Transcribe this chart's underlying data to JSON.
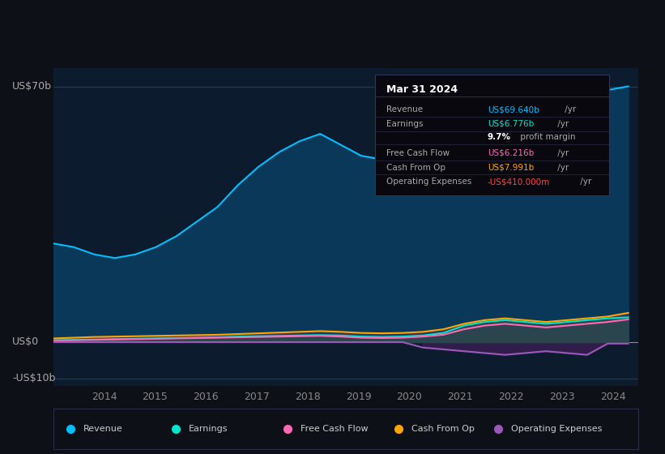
{
  "bg_color": "#0d1117",
  "plot_bg_color": "#0d1b2e",
  "x_labels": [
    "2014",
    "2015",
    "2016",
    "2017",
    "2018",
    "2019",
    "2020",
    "2021",
    "2022",
    "2023",
    "2024"
  ],
  "legend": [
    {
      "label": "Revenue",
      "color": "#00bfff"
    },
    {
      "label": "Earnings",
      "color": "#00e5cc"
    },
    {
      "label": "Free Cash Flow",
      "color": "#ff69b4"
    },
    {
      "label": "Cash From Op",
      "color": "#ffa500"
    },
    {
      "label": "Operating Expenses",
      "color": "#9b59b6"
    }
  ],
  "info_box_title": "Mar 31 2024",
  "info_rows": [
    {
      "label": "Revenue",
      "value": "US$69.640b",
      "suffix": " /yr",
      "value_color": "#00bfff",
      "bold": false
    },
    {
      "label": "Earnings",
      "value": "US$6.776b",
      "suffix": " /yr",
      "value_color": "#00e5cc",
      "bold": false
    },
    {
      "label": "",
      "value": "9.7%",
      "suffix": " profit margin",
      "value_color": "#ffffff",
      "bold": true
    },
    {
      "label": "Free Cash Flow",
      "value": "US$6.216b",
      "suffix": " /yr",
      "value_color": "#ff69b4",
      "bold": false
    },
    {
      "label": "Cash From Op",
      "value": "US$7.991b",
      "suffix": " /yr",
      "value_color": "#ffa500",
      "bold": false
    },
    {
      "label": "Operating Expenses",
      "value": "-US$410.000m",
      "suffix": " /yr",
      "value_color": "#ff4444",
      "bold": false
    }
  ],
  "revenue": [
    27,
    26,
    24,
    23,
    24,
    26,
    29,
    33,
    37,
    43,
    48,
    52,
    55,
    57,
    54,
    51,
    50,
    52,
    56,
    60,
    63,
    67,
    65,
    62,
    60,
    62,
    66,
    69,
    70
  ],
  "earnings": [
    0.5,
    0.6,
    0.7,
    0.8,
    0.9,
    1.0,
    1.1,
    1.2,
    1.3,
    1.5,
    1.6,
    1.7,
    1.8,
    1.9,
    1.8,
    1.5,
    1.4,
    1.5,
    1.8,
    2.5,
    4.5,
    5.5,
    6.0,
    5.5,
    5.0,
    5.5,
    6.0,
    6.5,
    6.776
  ],
  "free_cash_flow": [
    0.4,
    0.5,
    0.6,
    0.7,
    0.8,
    0.9,
    1.0,
    1.1,
    1.2,
    1.3,
    1.4,
    1.5,
    1.6,
    1.7,
    1.5,
    1.2,
    1.1,
    1.2,
    1.5,
    2.0,
    3.5,
    4.5,
    5.0,
    4.5,
    4.0,
    4.5,
    5.0,
    5.5,
    6.216
  ],
  "cash_from_op": [
    1.0,
    1.2,
    1.4,
    1.5,
    1.6,
    1.7,
    1.8,
    1.9,
    2.0,
    2.2,
    2.4,
    2.6,
    2.8,
    3.0,
    2.8,
    2.5,
    2.4,
    2.5,
    2.8,
    3.5,
    5.0,
    6.0,
    6.5,
    6.0,
    5.5,
    6.0,
    6.5,
    7.0,
    7.991
  ],
  "op_expenses": [
    0.0,
    0.0,
    0.0,
    0.0,
    0.0,
    0.0,
    0.0,
    0.0,
    0.0,
    0.0,
    0.0,
    0.0,
    0.0,
    0.0,
    0.0,
    0.0,
    0.0,
    0.0,
    -1.5,
    -2.0,
    -2.5,
    -3.0,
    -3.5,
    -3.0,
    -2.5,
    -3.0,
    -3.5,
    -0.41,
    -0.41
  ],
  "xlim": [
    2013.0,
    2024.5
  ],
  "ylim": [
    -12,
    75
  ],
  "ylabel_top": "US$70b",
  "ylabel_mid": "US$0",
  "ylabel_bot": "-US$10b",
  "ylabel_top_val": 70,
  "ylabel_mid_val": 0,
  "ylabel_bot_val": -10
}
